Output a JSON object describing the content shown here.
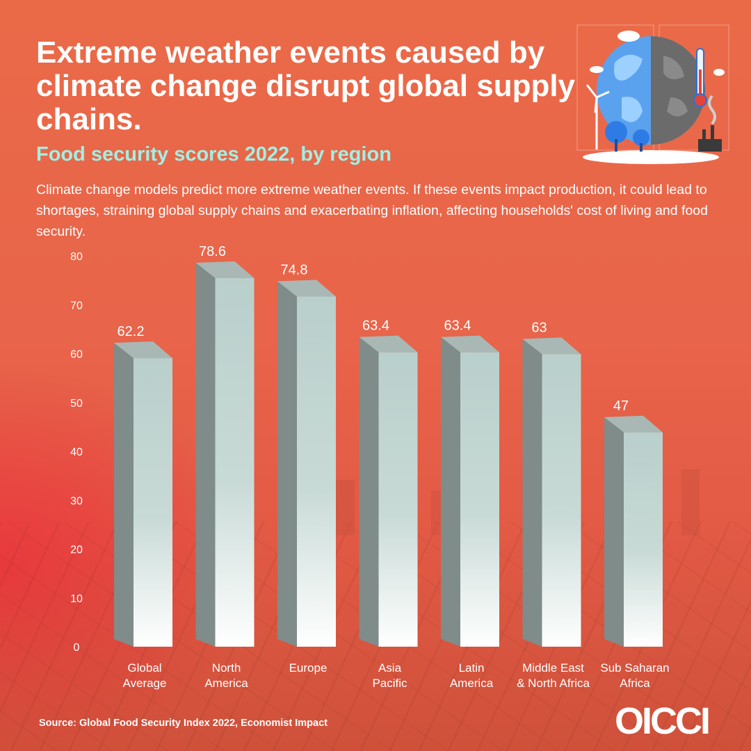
{
  "header": {
    "title": "Extreme weather events caused by climate change disrupt global supply chains.",
    "subtitle": "Food security scores 2022, by region",
    "description": "Climate change models predict more extreme weather events. If these events impact production, it could lead to shortages, straining global supply chains and exacerbating inflation, affecting households' cost of living and food security."
  },
  "chart_data": {
    "type": "bar",
    "title": "Food security scores 2022, by region",
    "categories": [
      [
        "Global",
        "Average"
      ],
      [
        "North",
        "America"
      ],
      [
        "Europe"
      ],
      [
        "Asia",
        "Pacific"
      ],
      [
        "Latin",
        "America"
      ],
      [
        "Middle East",
        "& North Africa"
      ],
      [
        "Sub Saharan",
        "Africa"
      ]
    ],
    "values": [
      62.2,
      78.6,
      74.8,
      63.4,
      63.4,
      63,
      47
    ],
    "value_labels": [
      "62.2",
      "78.6",
      "74.8",
      "63.4",
      "63.4",
      "63",
      "47"
    ],
    "ylim": [
      0,
      80
    ],
    "yticks": [
      0,
      10,
      20,
      30,
      40,
      50,
      60,
      70,
      80
    ],
    "grid": false,
    "xlabel": "",
    "ylabel": ""
  },
  "footer": {
    "source": "Source: Global Food Security Index 2022, Economist Impact",
    "logo": "OICCI"
  },
  "colors": {
    "background": "#e8644a",
    "subtitle": "#9ff0e4",
    "bar_side": "#7f8c8a",
    "bar_top": "#a9b8b4",
    "bar_front_top": "#b9cfcb",
    "bar_front_bottom": "#ffffff"
  },
  "illustration": {
    "icons": [
      "globe-icon",
      "thermometer-icon",
      "wind-turbine-icon",
      "tree-icon",
      "factory-icon",
      "cloud-icon"
    ]
  }
}
